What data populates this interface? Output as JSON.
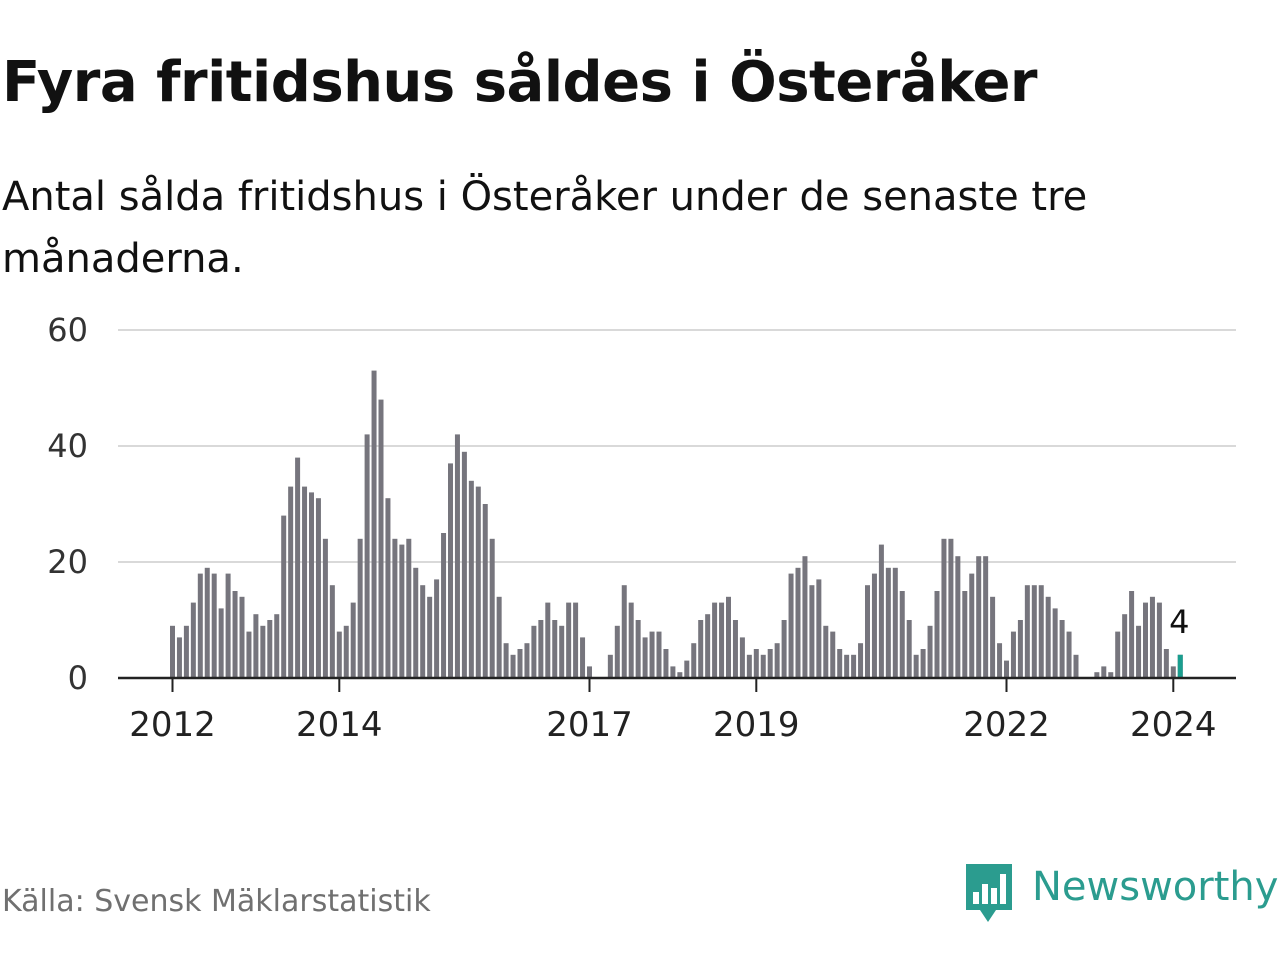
{
  "chart_data": {
    "type": "bar",
    "title": "Fyra fritidshus såldes i Österåker",
    "subtitle": "Antal sålda fritidshus i Österåker under de senaste tre månaderna.",
    "xlabel": "",
    "ylabel": "",
    "ylim": [
      0,
      60
    ],
    "y_ticks": [
      "0",
      "20",
      "40",
      "60"
    ],
    "grid": true,
    "start": "2012-01",
    "x_tick_labels": [
      {
        "label": "2012",
        "month_index": 0
      },
      {
        "label": "2014",
        "month_index": 24
      },
      {
        "label": "2017",
        "month_index": 60
      },
      {
        "label": "2019",
        "month_index": 84
      },
      {
        "label": "2022",
        "month_index": 120
      },
      {
        "label": "2024",
        "month_index": 144
      }
    ],
    "series": [
      {
        "name": "Antal sålda fritidshus",
        "values": [
          9,
          7,
          9,
          13,
          18,
          19,
          18,
          12,
          18,
          15,
          14,
          8,
          11,
          9,
          10,
          11,
          28,
          33,
          38,
          33,
          32,
          31,
          24,
          16,
          8,
          9,
          13,
          24,
          42,
          53,
          48,
          31,
          24,
          23,
          24,
          19,
          16,
          14,
          17,
          25,
          37,
          42,
          39,
          34,
          33,
          30,
          24,
          14,
          6,
          4,
          5,
          6,
          9,
          10,
          13,
          10,
          9,
          13,
          13,
          7,
          2,
          0,
          0,
          4,
          9,
          16,
          13,
          10,
          7,
          8,
          8,
          5,
          2,
          1,
          3,
          6,
          10,
          11,
          13,
          13,
          14,
          10,
          7,
          4,
          5,
          4,
          5,
          6,
          10,
          18,
          19,
          21,
          16,
          17,
          9,
          8,
          5,
          4,
          4,
          6,
          16,
          18,
          23,
          19,
          19,
          15,
          10,
          4,
          5,
          9,
          15,
          24,
          24,
          21,
          15,
          18,
          21,
          21,
          14,
          6,
          3,
          8,
          10,
          16,
          16,
          16,
          14,
          12,
          10,
          8,
          4,
          0,
          0,
          1,
          2,
          1,
          8,
          11,
          15,
          9,
          13,
          14,
          13,
          5,
          2,
          4
        ]
      }
    ],
    "highlight": {
      "month_index": 145,
      "label": "4",
      "color": "#1a9e8f"
    },
    "bar_color": "#76757d",
    "source": "Källa: Svensk Mäklarstatistik",
    "logo_text": "Newsworthy",
    "logo_color": "#2b9c8f"
  }
}
